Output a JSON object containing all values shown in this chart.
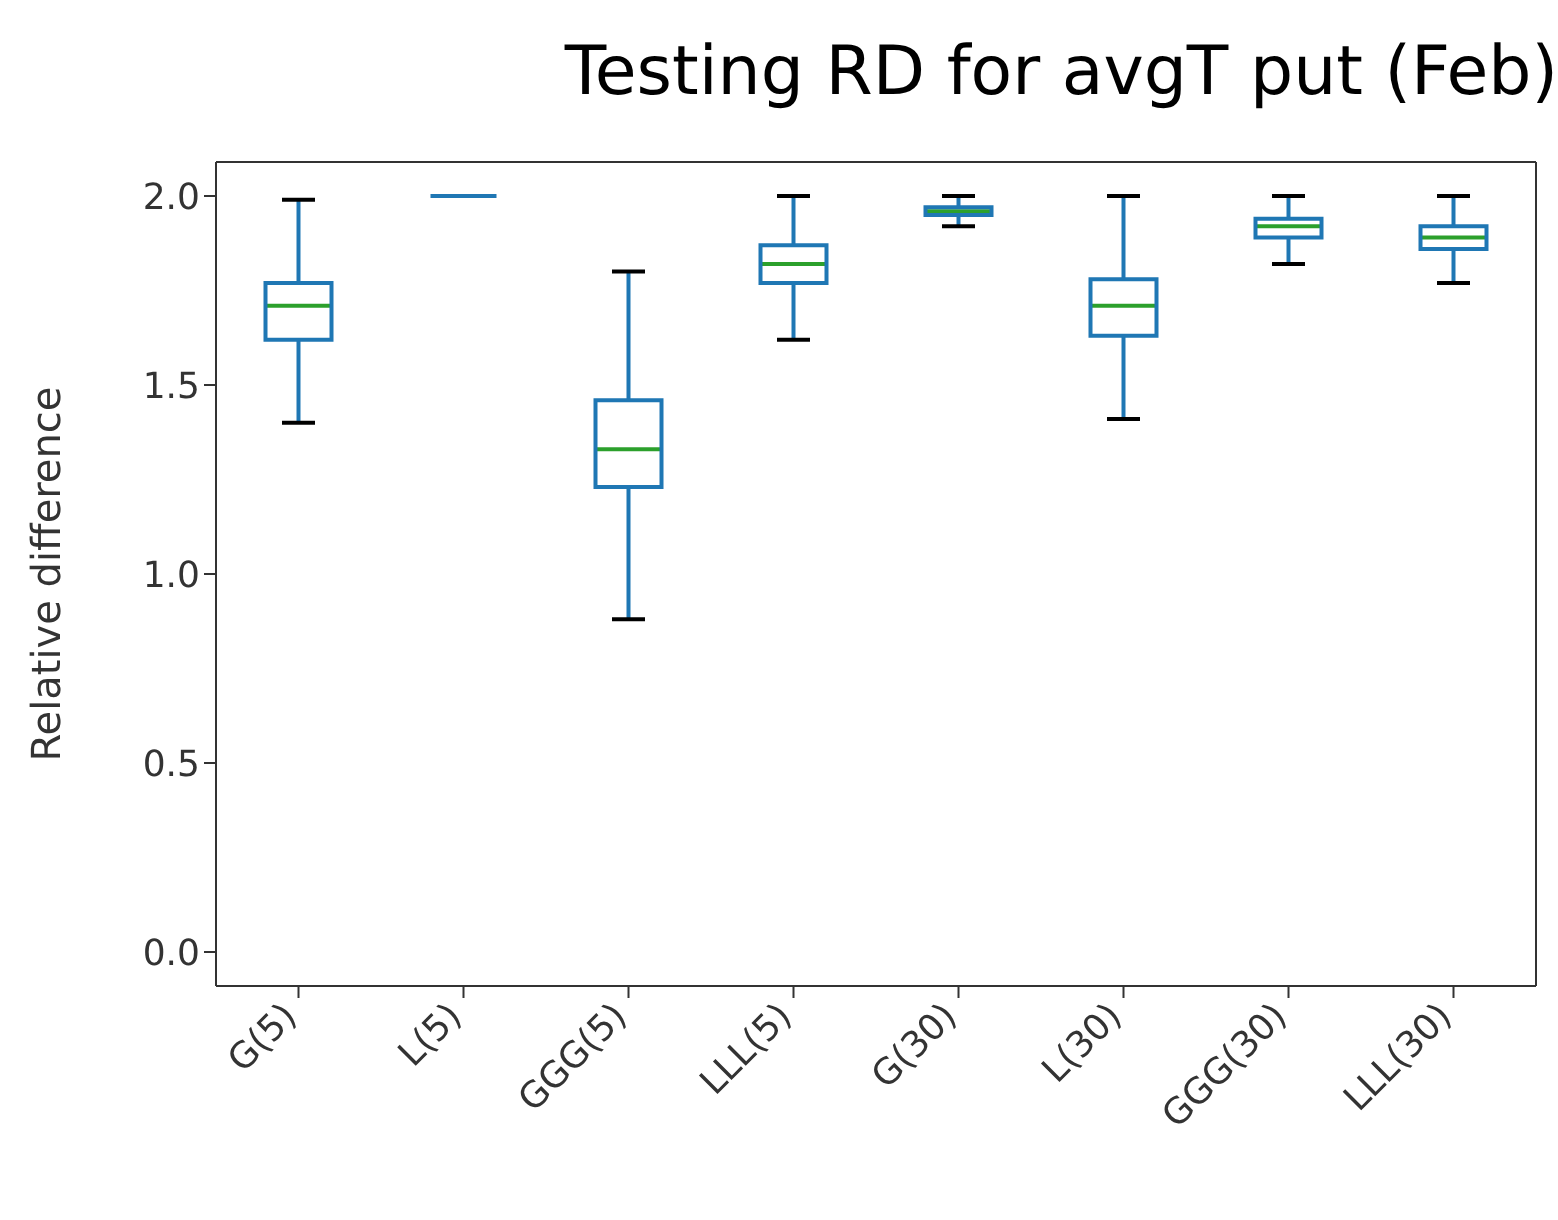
{
  "chart_data": {
    "type": "box",
    "title": "Testing RD for avgT put (Feb)",
    "ylabel": "Relative difference",
    "categories": [
      "G(5)",
      "L(5)",
      "GGG(5)",
      "LLL(5)",
      "G(30)",
      "L(30)",
      "GGG(30)",
      "LLL(30)"
    ],
    "color": "#1f77b4",
    "boxes": [
      {
        "low": 1.4,
        "q1": 1.62,
        "median": 1.71,
        "q3": 1.77,
        "high": 1.99
      },
      {
        "low": 2.0,
        "q1": 2.0,
        "median": 2.0,
        "q3": 2.0,
        "high": 2.0
      },
      {
        "low": 0.88,
        "q1": 1.23,
        "median": 1.33,
        "q3": 1.46,
        "high": 1.8
      },
      {
        "low": 1.62,
        "q1": 1.77,
        "median": 1.82,
        "q3": 1.87,
        "high": 2.0
      },
      {
        "low": 1.92,
        "q1": 1.95,
        "median": 1.96,
        "q3": 1.97,
        "high": 2.0
      },
      {
        "low": 1.41,
        "q1": 1.63,
        "median": 1.71,
        "q3": 1.78,
        "high": 2.0
      },
      {
        "low": 1.82,
        "q1": 1.89,
        "median": 1.92,
        "q3": 1.94,
        "high": 2.0
      },
      {
        "low": 1.77,
        "q1": 1.86,
        "median": 1.89,
        "q3": 1.92,
        "high": 2.0
      }
    ],
    "ylim": [
      -0.09,
      2.09
    ],
    "yticks": [
      {
        "value": 0,
        "label": "0.0"
      },
      {
        "value": 0.5,
        "label": "0.5"
      },
      {
        "value": 1,
        "label": "1.0"
      },
      {
        "value": 1.5,
        "label": "1.5"
      },
      {
        "value": 2,
        "label": "2.0"
      }
    ],
    "grid": false
  }
}
